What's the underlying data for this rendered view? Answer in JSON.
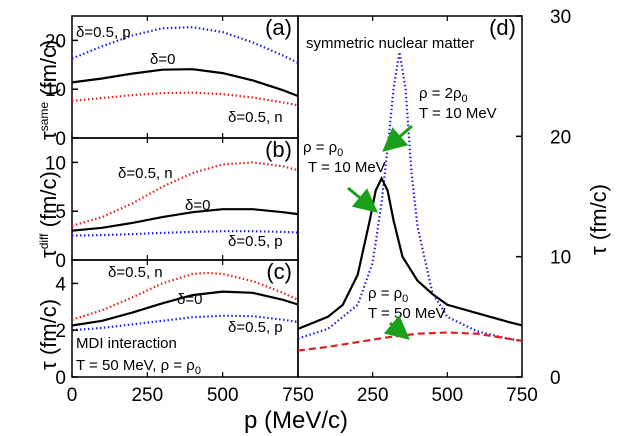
{
  "chart_data": [
    {
      "type": "line",
      "panel_label": "(a)",
      "ylabel_main": "τ",
      "ylabel_super": "same",
      "ylabel_unit": " (fm/c)",
      "xlim": [
        0,
        750
      ],
      "ylim": [
        0,
        25
      ],
      "yticks": [
        0,
        10,
        20
      ],
      "series": [
        {
          "name": "δ=0.5, p",
          "color": "#1f1fe0",
          "style": "dotted",
          "x": [
            0,
            100,
            200,
            300,
            400,
            500,
            600,
            700,
            750
          ],
          "y": [
            16.3,
            18.8,
            21.0,
            22.5,
            22.7,
            21.7,
            19.6,
            16.9,
            15.4
          ]
        },
        {
          "name": "δ=0",
          "color": "#000000",
          "style": "solid",
          "x": [
            0,
            100,
            200,
            300,
            400,
            500,
            600,
            700,
            750
          ],
          "y": [
            11.4,
            12.2,
            13.2,
            14.0,
            14.1,
            13.3,
            11.8,
            9.8,
            8.6
          ]
        },
        {
          "name": "δ=0.5, n",
          "color": "#e02020",
          "style": "dotted",
          "x": [
            0,
            100,
            200,
            300,
            400,
            500,
            600,
            700,
            750
          ],
          "y": [
            7.6,
            8.2,
            8.8,
            9.2,
            9.3,
            9.0,
            8.3,
            7.3,
            6.7
          ]
        }
      ],
      "annotations": [
        "δ=0.5, p",
        "δ=0",
        "δ=0.5, n"
      ]
    },
    {
      "type": "line",
      "panel_label": "(b)",
      "ylabel_main": "τ",
      "ylabel_super": "diff",
      "ylabel_unit": " (fm/c)",
      "xlim": [
        0,
        750
      ],
      "ylim": [
        0,
        12.5
      ],
      "yticks": [
        0,
        5,
        10
      ],
      "series": [
        {
          "name": "δ=0.5, n",
          "color": "#e02020",
          "style": "dotted",
          "x": [
            0,
            100,
            200,
            300,
            400,
            500,
            600,
            700,
            750
          ],
          "y": [
            3.5,
            4.4,
            5.8,
            7.5,
            8.9,
            9.8,
            10.0,
            9.6,
            9.2
          ]
        },
        {
          "name": "δ=0",
          "color": "#000000",
          "style": "solid",
          "x": [
            0,
            100,
            200,
            300,
            400,
            500,
            600,
            700,
            750
          ],
          "y": [
            3.0,
            3.3,
            3.8,
            4.4,
            4.9,
            5.2,
            5.2,
            4.9,
            4.7
          ]
        },
        {
          "name": "δ=0.5, p",
          "color": "#1f1fe0",
          "style": "dotted",
          "x": [
            0,
            100,
            200,
            300,
            400,
            500,
            600,
            700,
            750
          ],
          "y": [
            2.5,
            2.55,
            2.65,
            2.78,
            2.88,
            2.95,
            2.95,
            2.88,
            2.82
          ]
        }
      ],
      "annotations": [
        "δ=0.5, n",
        "δ=0",
        "δ=0.5, p"
      ]
    },
    {
      "type": "line",
      "panel_label": "(c)",
      "ylabel_main": "τ",
      "ylabel_unit": " (fm/c)",
      "xlim": [
        0,
        750
      ],
      "ylim": [
        0,
        5
      ],
      "yticks": [
        0,
        2,
        4
      ],
      "xticks": [
        0,
        250,
        500,
        750
      ],
      "series": [
        {
          "name": "δ=0.5, n",
          "color": "#e02020",
          "style": "dotted",
          "x": [
            0,
            100,
            200,
            300,
            400,
            450,
            500,
            600,
            700,
            750
          ],
          "y": [
            2.45,
            2.85,
            3.4,
            4.0,
            4.4,
            4.45,
            4.4,
            4.1,
            3.6,
            3.3
          ]
        },
        {
          "name": "δ=0",
          "color": "#000000",
          "style": "solid",
          "x": [
            0,
            100,
            200,
            300,
            400,
            500,
            600,
            700,
            750
          ],
          "y": [
            2.2,
            2.4,
            2.75,
            3.15,
            3.5,
            3.65,
            3.6,
            3.3,
            3.1
          ]
        },
        {
          "name": "δ=0.5, p",
          "color": "#1f1fe0",
          "style": "dotted",
          "x": [
            0,
            100,
            200,
            300,
            400,
            500,
            600,
            700,
            750
          ],
          "y": [
            2.0,
            2.1,
            2.25,
            2.4,
            2.55,
            2.62,
            2.6,
            2.45,
            2.35
          ]
        }
      ],
      "annotations": [
        "δ=0.5, n",
        "δ=0",
        "δ=0.5, p"
      ],
      "note_line1": "MDI interaction",
      "note_line2_a": "T = 50 MeV, ρ = ρ",
      "note_line2_sub": "0"
    },
    {
      "type": "line",
      "panel_label": "(d)",
      "title": "symmetric nuclear matter",
      "ylabel": "τ (fm/c)",
      "xlim": [
        0,
        750
      ],
      "ylim": [
        0,
        30
      ],
      "yticks": [
        0,
        10,
        20,
        30
      ],
      "xticks": [
        0,
        250,
        500,
        750
      ],
      "series": [
        {
          "name": "ρ = 2ρ0, T = 10 MeV",
          "color": "#1f1fe0",
          "style": "dotted",
          "x": [
            0,
            100,
            200,
            250,
            280,
            300,
            320,
            340,
            360,
            380,
            400,
            450,
            500,
            600,
            700,
            750
          ],
          "y": [
            3.2,
            4.0,
            6.0,
            9.5,
            14.5,
            19.0,
            24.0,
            27.0,
            24.0,
            17.0,
            12.5,
            7.0,
            5.0,
            3.8,
            3.2,
            3.0
          ]
        },
        {
          "name": "ρ = ρ0, T = 10 MeV",
          "color": "#000000",
          "style": "solid",
          "x": [
            0,
            100,
            150,
            200,
            240,
            260,
            280,
            300,
            320,
            350,
            400,
            450,
            500,
            600,
            700,
            750
          ],
          "y": [
            4.0,
            5.0,
            6.0,
            8.5,
            13.0,
            15.5,
            16.5,
            15.5,
            13.0,
            10.0,
            8.0,
            6.9,
            6.0,
            5.3,
            4.6,
            4.3
          ]
        },
        {
          "name": "ρ = ρ0, T = 50 MeV",
          "color": "#e02020",
          "style": "dashed",
          "x": [
            0,
            100,
            200,
            300,
            400,
            500,
            600,
            700,
            750
          ],
          "y": [
            2.2,
            2.5,
            2.9,
            3.3,
            3.6,
            3.7,
            3.6,
            3.2,
            3.0
          ]
        }
      ],
      "annotations": {
        "rho2_line1_a": "ρ = 2ρ",
        "rho2_line1_sub": "0",
        "rho2_line2": "T = 10 MeV",
        "rho1_line1_a": "ρ = ρ",
        "rho1_line1_sub": "0",
        "rho1_line2": "T = 10 MeV",
        "rho3_line1_a": "ρ = ρ",
        "rho3_line1_sub": "0",
        "rho3_line2": "T = 50 MeV"
      }
    }
  ],
  "xlabel": "p (MeV/c)",
  "colors": {
    "blue": "#1f1fe0",
    "red": "#e02020",
    "black": "#000000",
    "arrow": "#1aa01a"
  }
}
